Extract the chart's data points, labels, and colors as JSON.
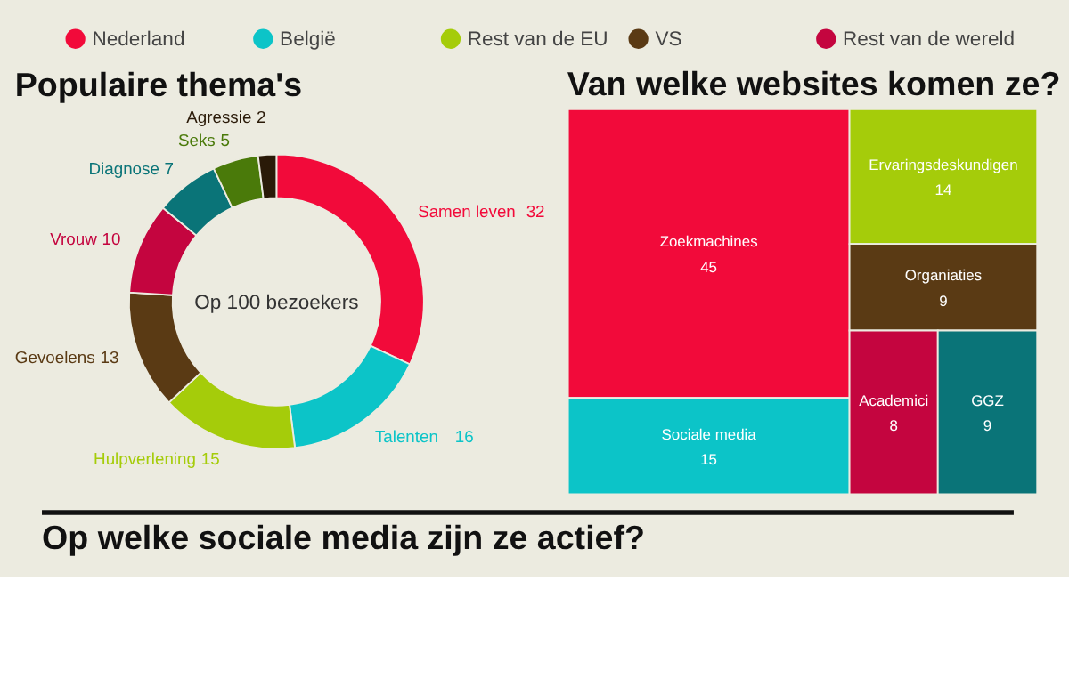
{
  "chart_data": [
    {
      "type": "other",
      "categories": [
        "Nederland",
        "België",
        "Rest van de EU",
        "VS",
        "Rest van de wereld"
      ],
      "colors": [
        "#f20a3a",
        "#0cc4c8",
        "#a5cc0a",
        "#5a3a14",
        "#c4053f"
      ]
    },
    {
      "type": "donut",
      "title": "Populaire thema's",
      "categories": [
        "Samen leven",
        "Talenten",
        "Hulpverlening",
        "Gevoelens",
        "Vrouw",
        "Diagnose",
        "Seks",
        "Agressie"
      ],
      "values": [
        32,
        16,
        15,
        13,
        10,
        7,
        5,
        2
      ],
      "colors": [
        "#f20a3a",
        "#0cc4c8",
        "#a5cc0a",
        "#5a3a14",
        "#c4053f",
        "#0a7478",
        "#4a7a0a",
        "#2a1a08"
      ],
      "data_labels": true,
      "annotations": [
        "Op 100 bezoekers"
      ]
    },
    {
      "type": "other",
      "title": "Van welke websites komen ze?",
      "categories": [
        "Zoekmachines",
        "Sociale media",
        "Ervaringsdeskundigen",
        "Organiaties",
        "Academici",
        "GGZ"
      ],
      "values": [
        45,
        15,
        14,
        9,
        8,
        9
      ],
      "colors": [
        "#f20a3a",
        "#0cc4c8",
        "#a5cc0a",
        "#5a3a14",
        "#c4053f",
        "#0a7478"
      ],
      "data_labels": true
    },
    {
      "type": "other",
      "title": "Op welke sociale media zijn ze actief?"
    }
  ]
}
